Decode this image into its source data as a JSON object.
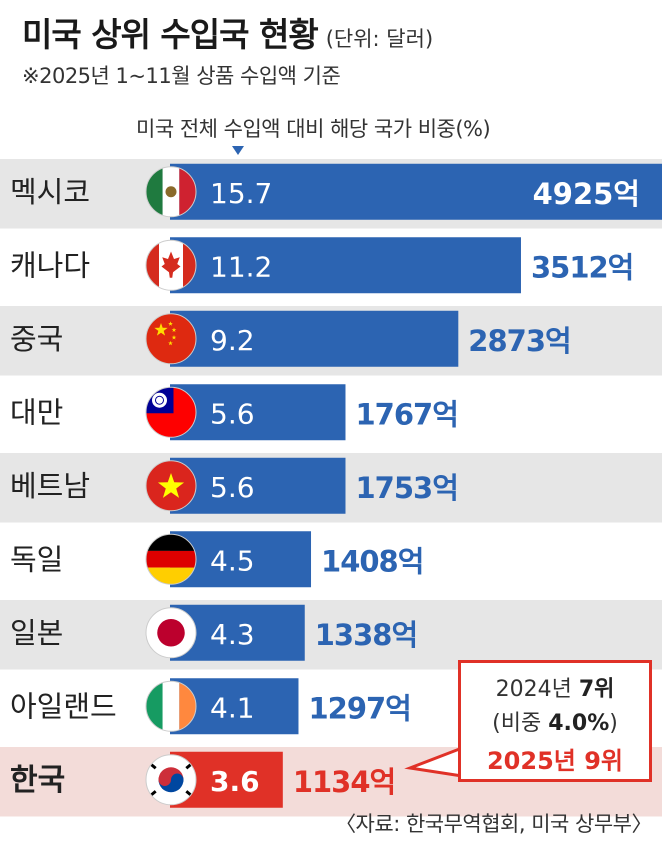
{
  "header": {
    "title": "미국 상위 수입국 현황",
    "unit": "(단위: 달러)",
    "subtitle": "※2025년 1~11월 상품 수입액 기준",
    "share_note": "미국 전체 수입액 대비 해당 국가 비중(%)"
  },
  "chart_data": {
    "type": "bar",
    "orientation": "horizontal",
    "categories": [
      "멕시코",
      "캐나다",
      "중국",
      "대만",
      "베트남",
      "독일",
      "일본",
      "아일랜드",
      "한국"
    ],
    "series": [
      {
        "name": "미국 전체 수입액 대비 해당 국가 비중(%)",
        "values": [
          15.7,
          11.2,
          9.2,
          5.6,
          5.6,
          4.5,
          4.3,
          4.1,
          3.6
        ]
      }
    ],
    "value_labels": [
      "15.7",
      "11.2",
      "9.2",
      "5.6",
      "5.6",
      "4.5",
      "4.3",
      "4.1",
      "3.6"
    ],
    "import_amounts": [
      "4925억",
      "3512억",
      "2873억",
      "1767억",
      "1753억",
      "1408억",
      "1338억",
      "1297억",
      "1134억"
    ],
    "highlight_category": "한국",
    "colors": {
      "bar": "#2c64b2",
      "highlight_bar": "#e03127",
      "highlight_row": "#f3dcd9",
      "stripe_row": "#e6e6e6"
    },
    "flags": [
      "mexico-flag-icon",
      "canada-flag-icon",
      "china-flag-icon",
      "taiwan-flag-icon",
      "vietnam-flag-icon",
      "germany-flag-icon",
      "japan-flag-icon",
      "ireland-flag-icon",
      "korea-flag-icon"
    ]
  },
  "callout": {
    "line1_prefix": "2024년 ",
    "line1_rank": "7위",
    "line2_prefix": "(비중 ",
    "line2_value": "4.0%",
    "line2_suffix": ")",
    "line3": "2025년 9위"
  },
  "source": "〈자료: 한국무역협회, 미국 상무부〉"
}
